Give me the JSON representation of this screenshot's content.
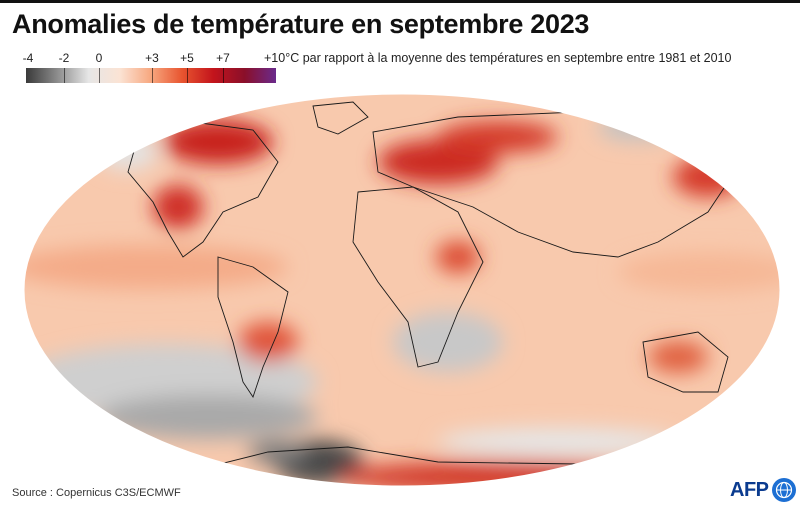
{
  "title": "Anomalies de température en septembre 2023",
  "legend": {
    "ticks": [
      "-4",
      "-2",
      "0",
      "+3",
      "+5",
      "+7"
    ],
    "description": "+10°C par rapport à la moyenne des températures en septembre entre 1981 et 2010",
    "range": [
      -4,
      10
    ],
    "colors": [
      "#3a3a3a",
      "#8c8c8c",
      "#e6e6e6",
      "#fbe3d4",
      "#f7a77f",
      "#e8542f",
      "#c3141c",
      "#8a0f2a",
      "#6a2a8c"
    ]
  },
  "map": {
    "projection": "Robinson",
    "colors": {
      "land_border": "#1a1a1a",
      "warm_light": "#f8c9ad",
      "warm_mid": "#f29a74",
      "warm_strong": "#d93a2c",
      "warm_extreme": "#b5121c",
      "neutral": "#eeeeee",
      "cool": "#9a9a9a",
      "cold": "#444444"
    }
  },
  "source": "Source : Copernicus C3S/ECMWF",
  "logo": {
    "text": "AFP",
    "icon": "afp-globe-icon"
  }
}
